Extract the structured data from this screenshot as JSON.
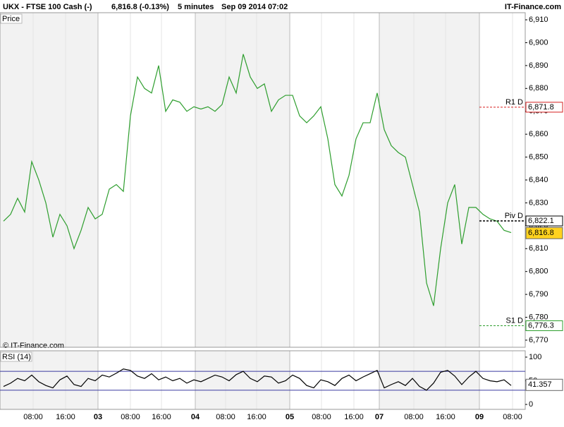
{
  "header": {
    "symbol": "UKX - FTSE 100 Cash (-)",
    "quote": "6,816.8 (-0.13%)",
    "interval": "5 minutes",
    "datetime": "Sep 09 2014 07:02",
    "brand": "IT-Finance.com",
    "copyright": "© IT-Finance.com"
  },
  "chart_data": [
    {
      "type": "line",
      "title": "Price",
      "grid": true,
      "xlim": [
        -0.5,
        74
      ],
      "ylim": [
        6766.9,
        6913.1
      ],
      "xticks": [
        {
          "value": 4.2,
          "label": "08:00"
        },
        {
          "value": 8.8,
          "label": "16:00"
        },
        {
          "value": 13.4,
          "label": "03"
        },
        {
          "value": 18,
          "label": "08:00"
        },
        {
          "value": 22.4,
          "label": "16:00"
        },
        {
          "value": 27.2,
          "label": "04"
        },
        {
          "value": 31.5,
          "label": "08:00"
        },
        {
          "value": 35.9,
          "label": "16:00"
        },
        {
          "value": 40.6,
          "label": "05"
        },
        {
          "value": 45.1,
          "label": "08:00"
        },
        {
          "value": 49.7,
          "label": "16:00"
        },
        {
          "value": 53.3,
          "label": "07"
        },
        {
          "value": 58.2,
          "label": "08:00"
        },
        {
          "value": 62.7,
          "label": "16:00"
        },
        {
          "value": 67.5,
          "label": "09"
        },
        {
          "value": 72.2,
          "label": "08:00"
        }
      ],
      "yticks": [
        {
          "value": 6910,
          "label": "6,910"
        },
        {
          "value": 6900,
          "label": "6,900"
        },
        {
          "value": 6890,
          "label": "6,890"
        },
        {
          "value": 6880,
          "label": "6,880"
        },
        {
          "value": 6870,
          "label": "6,870"
        },
        {
          "value": 6860,
          "label": "6,860"
        },
        {
          "value": 6850,
          "label": "6,850"
        },
        {
          "value": 6840,
          "label": "6,840"
        },
        {
          "value": 6830,
          "label": "6,830"
        },
        {
          "value": 6820,
          "label": "6,820"
        },
        {
          "value": 6810,
          "label": "6,810"
        },
        {
          "value": 6800,
          "label": "6,800"
        },
        {
          "value": 6790,
          "label": "6,790"
        },
        {
          "value": 6780,
          "label": "6,780"
        },
        {
          "value": 6770,
          "label": "6,770"
        }
      ],
      "series": [
        {
          "name": "UKX",
          "color": "#2e9e2e",
          "x": [
            0,
            1,
            2,
            3,
            4,
            5,
            6,
            7,
            8,
            9,
            10,
            11,
            12,
            13,
            14,
            15,
            16,
            17,
            18,
            19,
            20,
            21,
            22,
            23,
            24,
            25,
            26,
            27,
            28,
            29,
            30,
            31,
            32,
            33,
            34,
            35,
            36,
            37,
            38,
            39,
            40,
            41,
            42,
            43,
            44,
            45,
            46,
            47,
            48,
            49,
            50,
            51,
            52,
            53,
            54,
            55,
            56,
            57,
            58,
            59,
            60,
            61,
            62,
            63,
            64,
            65,
            66,
            67,
            68,
            69,
            70,
            71,
            72
          ],
          "values": [
            6822,
            6825,
            6832,
            6826,
            6848,
            6840,
            6830,
            6815,
            6825,
            6820,
            6810,
            6818,
            6828,
            6823,
            6825,
            6836,
            6838,
            6835,
            6868,
            6885,
            6880,
            6878,
            6890,
            6870,
            6875,
            6874,
            6870,
            6872,
            6871,
            6872,
            6870,
            6873,
            6885,
            6878,
            6895,
            6885,
            6880,
            6882,
            6870,
            6875,
            6877,
            6877,
            6868,
            6865,
            6868,
            6872,
            6858,
            6838,
            6833,
            6842,
            6858,
            6865,
            6865,
            6878,
            6862,
            6855,
            6852,
            6850,
            6838,
            6826,
            6795,
            6785,
            6810,
            6830,
            6838,
            6812,
            6828,
            6828,
            6825,
            6823,
            6822,
            6818,
            6817
          ]
        }
      ],
      "levels": [
        {
          "name": "R1 D",
          "value": 6871.8,
          "value_label": "6,871.8",
          "color": "#d62020"
        },
        {
          "name": "Piv D",
          "value": 6822.1,
          "value_label": "6,822.1",
          "color": "#000000"
        },
        {
          "name": "S1 D",
          "value": 6776.3,
          "value_label": "6,776.3",
          "color": "#2e9e2e"
        }
      ],
      "last": 6816.8,
      "last_label": "6,816.8"
    },
    {
      "type": "line",
      "title": "RSI (14)",
      "xlim": [
        -0.5,
        74
      ],
      "ylim": [
        -10.4,
        113.4
      ],
      "yticks": [
        0,
        50,
        100
      ],
      "bands": [
        30,
        70
      ],
      "series": [
        {
          "name": "RSI",
          "color": "#000000",
          "x": [
            0,
            1,
            2,
            3,
            4,
            5,
            6,
            7,
            8,
            9,
            10,
            11,
            12,
            13,
            14,
            15,
            16,
            17,
            18,
            19,
            20,
            21,
            22,
            23,
            24,
            25,
            26,
            27,
            28,
            29,
            30,
            31,
            32,
            33,
            34,
            35,
            36,
            37,
            38,
            39,
            40,
            41,
            42,
            43,
            44,
            45,
            46,
            47,
            48,
            49,
            50,
            51,
            52,
            53,
            54,
            55,
            56,
            57,
            58,
            59,
            60,
            61,
            62,
            63,
            64,
            65,
            66,
            67,
            68,
            69,
            70,
            71,
            72
          ],
          "values": [
            38,
            45,
            55,
            50,
            62,
            48,
            40,
            35,
            52,
            60,
            42,
            38,
            55,
            50,
            62,
            58,
            66,
            75,
            72,
            60,
            55,
            65,
            52,
            58,
            50,
            55,
            45,
            52,
            48,
            55,
            62,
            58,
            50,
            63,
            70,
            55,
            48,
            60,
            58,
            45,
            50,
            62,
            55,
            40,
            35,
            52,
            48,
            40,
            55,
            62,
            50,
            58,
            65,
            72,
            35,
            42,
            48,
            40,
            55,
            38,
            30,
            45,
            68,
            72,
            60,
            42,
            58,
            70,
            55,
            50,
            48,
            52,
            40
          ]
        }
      ],
      "last": 41.357
    }
  ]
}
